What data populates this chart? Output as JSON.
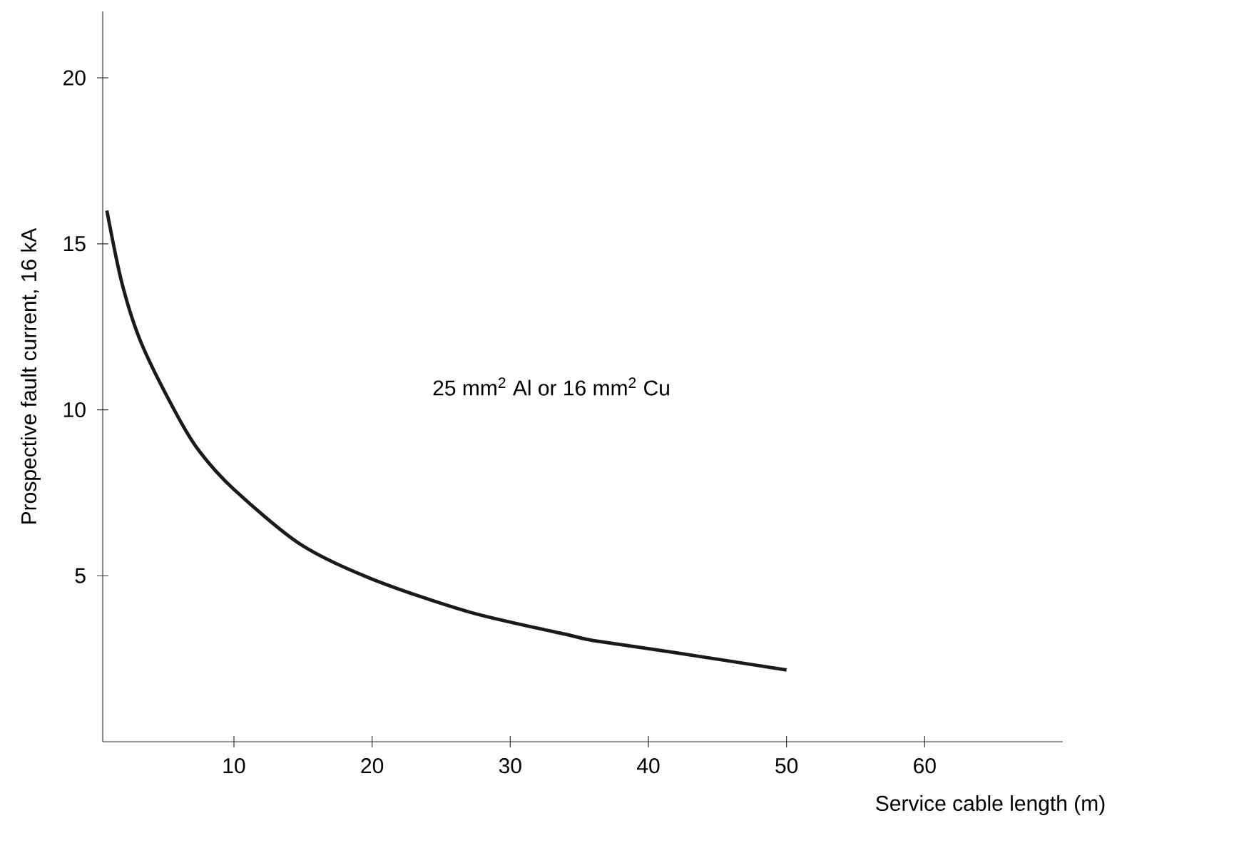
{
  "chart_data": {
    "type": "line",
    "xlabel": "Service cable length (m)",
    "ylabel": "Prospective fault current, 16 kA",
    "annotations": [
      "25 mm$^{2}$ Al or 16 mm$^{2}$ Cu"
    ],
    "x": [
      0.8,
      1.9,
      3.3,
      5.8,
      7.5,
      10.0,
      14.8,
      20,
      27.1,
      34.4,
      36,
      41.7,
      50
    ],
    "series": [
      {
        "color": "#1a1a1a",
        "values": [
          16.0,
          13.8,
          12.0,
          9.9,
          8.75,
          7.6,
          5.95,
          4.9,
          3.9,
          3.2,
          3.05,
          2.7,
          2.16
        ]
      }
    ],
    "xlim": [
      0.5,
      70
    ],
    "ylim": [
      0,
      22
    ],
    "xticks": [
      10,
      20,
      30,
      40,
      50,
      60
    ],
    "yticks": [
      5,
      10,
      15,
      20
    ],
    "marker": "none",
    "line_style": "solid"
  }
}
